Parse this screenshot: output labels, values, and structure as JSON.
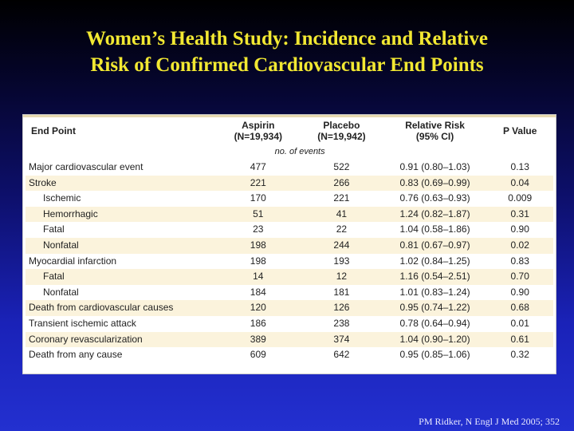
{
  "title": {
    "line1": "Women’s Health Study: Incidence and Relative",
    "line2": "Risk of Confirmed Cardiovascular End Points"
  },
  "table": {
    "headers": {
      "end_point": "End Point",
      "aspirin_1": "Aspirin",
      "aspirin_2": "(N=19,934)",
      "placebo_1": "Placebo",
      "placebo_2": "(N=19,942)",
      "rr_1": "Relative Risk",
      "rr_2": "(95% CI)",
      "p_value": "P Value"
    },
    "units": "no. of events",
    "rows": [
      {
        "end_point": "Major cardiovascular event",
        "aspirin": "477",
        "placebo": "522",
        "rr": "0.91 (0.80–1.03)",
        "p": "0.13"
      },
      {
        "end_point": "Stroke",
        "aspirin": "221",
        "placebo": "266",
        "rr": "0.83 (0.69–0.99)",
        "p": "0.04"
      },
      {
        "end_point": "Ischemic",
        "aspirin": "170",
        "placebo": "221",
        "rr": "0.76 (0.63–0.93)",
        "p": "0.009"
      },
      {
        "end_point": "Hemorrhagic",
        "aspirin": "51",
        "placebo": "41",
        "rr": "1.24 (0.82–1.87)",
        "p": "0.31"
      },
      {
        "end_point": "Fatal",
        "aspirin": "23",
        "placebo": "22",
        "rr": "1.04 (0.58–1.86)",
        "p": "0.90"
      },
      {
        "end_point": "Nonfatal",
        "aspirin": "198",
        "placebo": "244",
        "rr": "0.81 (0.67–0.97)",
        "p": "0.02"
      },
      {
        "end_point": "Myocardial infarction",
        "aspirin": "198",
        "placebo": "193",
        "rr": "1.02 (0.84–1.25)",
        "p": "0.83"
      },
      {
        "end_point": "Fatal",
        "aspirin": "14",
        "placebo": "12",
        "rr": "1.16 (0.54–2.51)",
        "p": "0.70"
      },
      {
        "end_point": "Nonfatal",
        "aspirin": "184",
        "placebo": "181",
        "rr": "1.01 (0.83–1.24)",
        "p": "0.90"
      },
      {
        "end_point": "Death from cardiovascular causes",
        "aspirin": "120",
        "placebo": "126",
        "rr": "0.95 (0.74–1.22)",
        "p": "0.68"
      },
      {
        "end_point": "Transient ischemic attack",
        "aspirin": "186",
        "placebo": "238",
        "rr": "0.78 (0.64–0.94)",
        "p": "0.01"
      },
      {
        "end_point": "Coronary revascularization",
        "aspirin": "389",
        "placebo": "374",
        "rr": "1.04 (0.90–1.20)",
        "p": "0.61"
      },
      {
        "end_point": "Death from any cause",
        "aspirin": "609",
        "placebo": "642",
        "rr": "0.95 (0.85–1.06)",
        "p": "0.32"
      }
    ]
  },
  "citation": "PM Ridker, N Engl J Med 2005; 352"
}
